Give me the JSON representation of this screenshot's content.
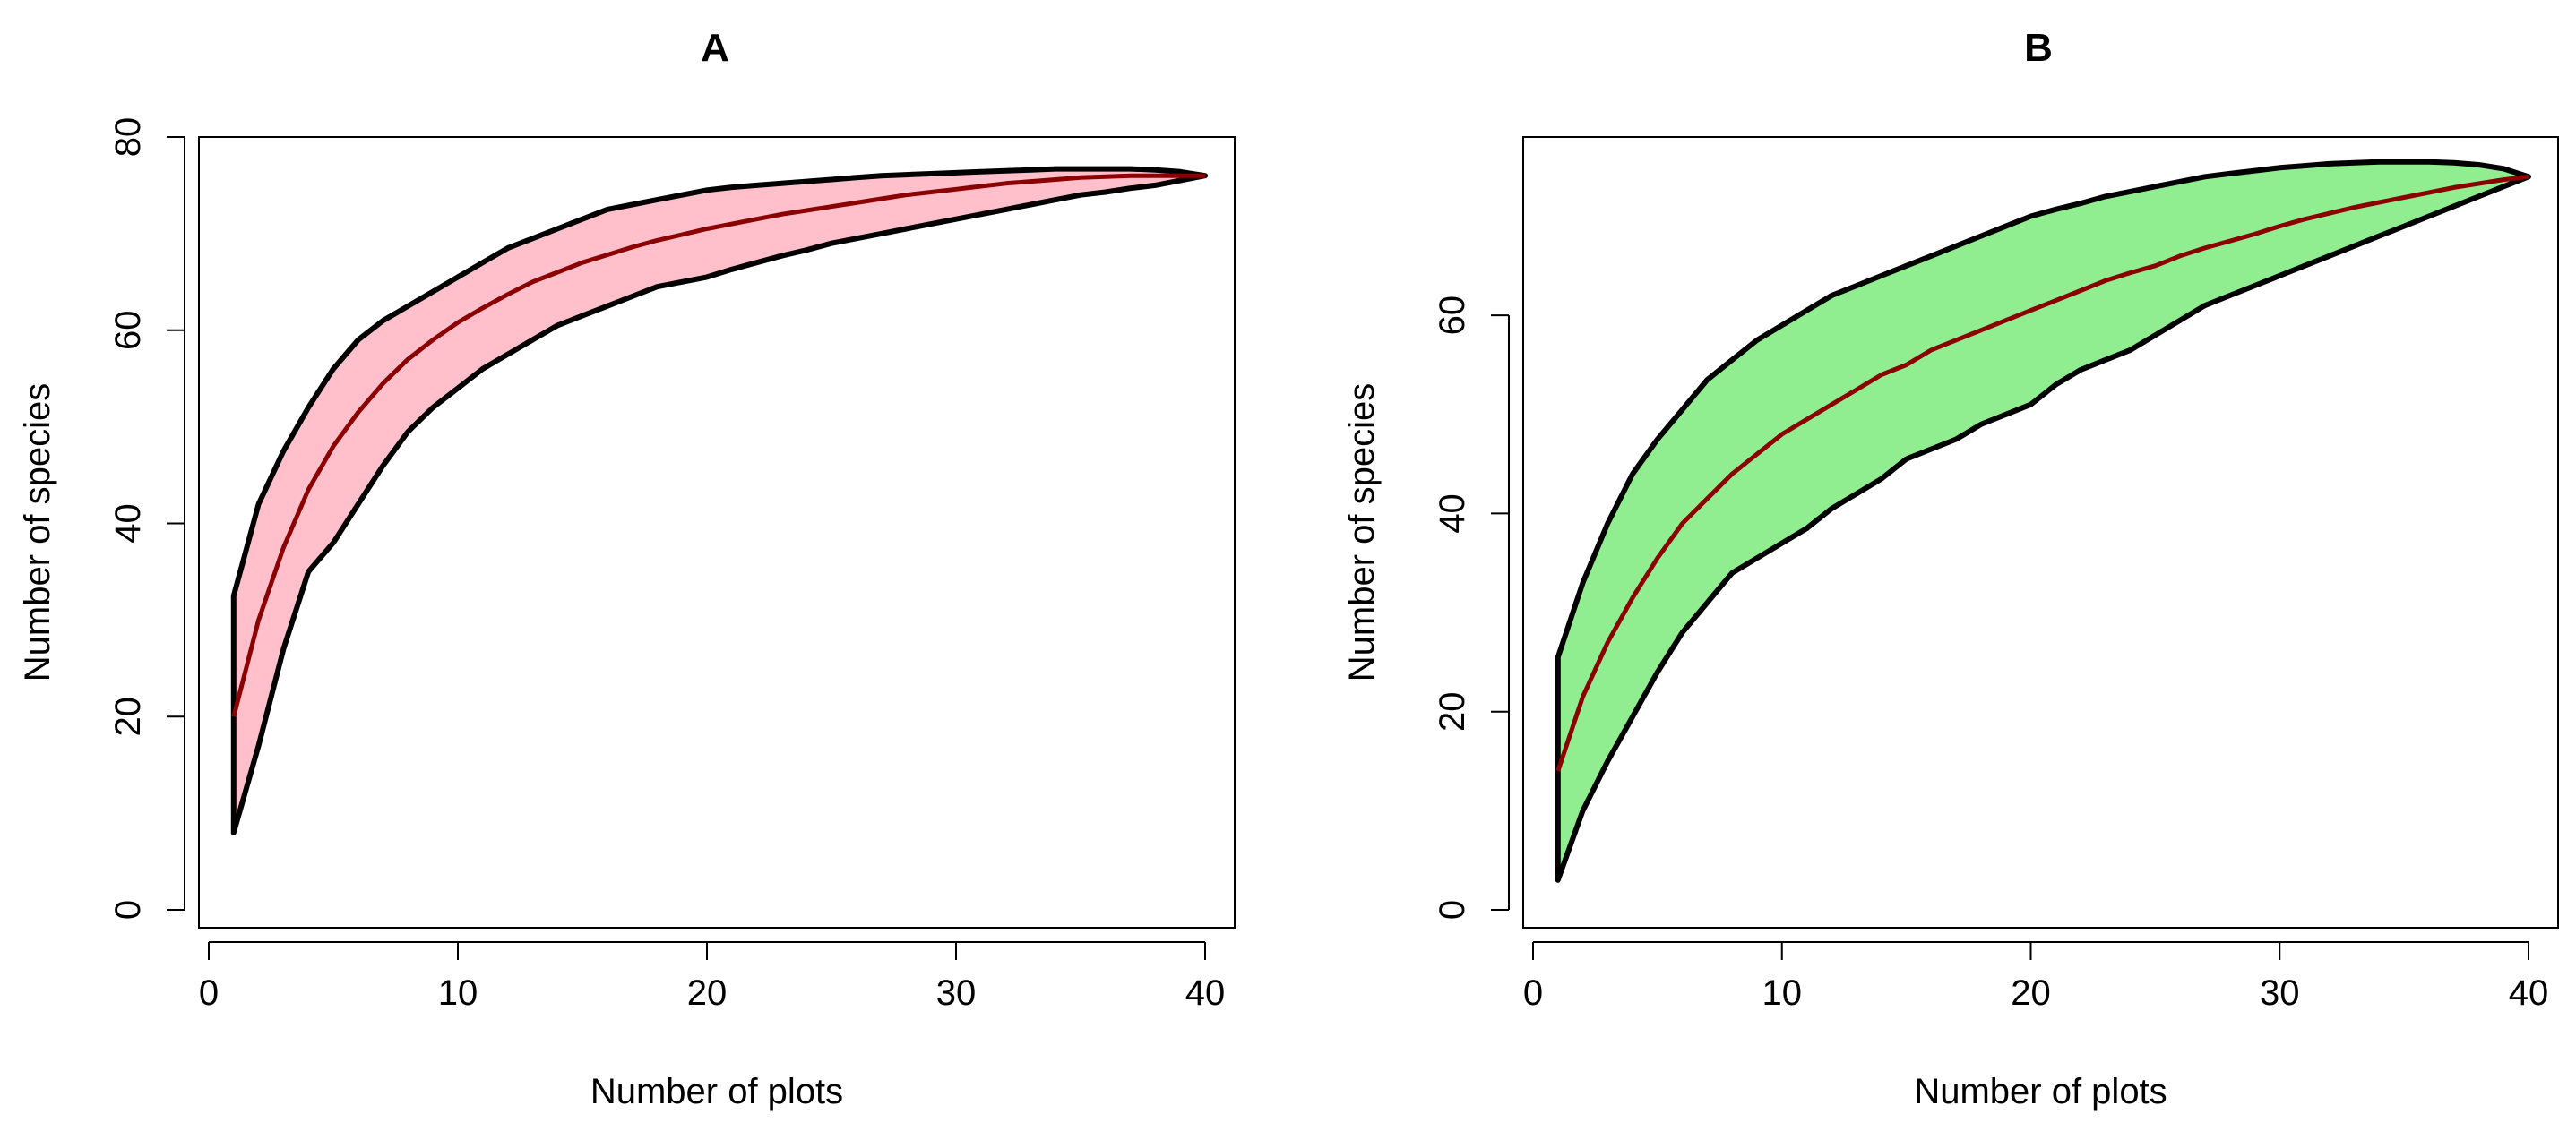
{
  "chart_data": [
    {
      "type": "area",
      "title": "A",
      "xlabel": "Number of plots",
      "ylabel": "Number of species",
      "xlim": [
        0,
        40
      ],
      "ylim": [
        0,
        80
      ],
      "xticks": [
        0,
        10,
        20,
        30,
        40
      ],
      "yticks": [
        0,
        20,
        40,
        60,
        80
      ],
      "grid": false,
      "colors": {
        "band": "#ffc0cb",
        "band_edge": "#000000",
        "mean_line": "#8b0000"
      },
      "x": [
        1,
        2,
        3,
        4,
        5,
        6,
        7,
        8,
        9,
        10,
        11,
        12,
        13,
        14,
        15,
        16,
        17,
        18,
        19,
        20,
        21,
        22,
        23,
        24,
        25,
        26,
        27,
        28,
        29,
        30,
        31,
        32,
        33,
        34,
        35,
        36,
        37,
        38,
        39,
        40
      ],
      "series": [
        {
          "role": "lower",
          "values": [
            8,
            17,
            27,
            35,
            38,
            42,
            46,
            49.5,
            52,
            54,
            56,
            57.5,
            59,
            60.5,
            61.5,
            62.5,
            63.5,
            64.5,
            65,
            65.5,
            66.3,
            67,
            67.7,
            68.3,
            69,
            69.5,
            70,
            70.5,
            71,
            71.5,
            72,
            72.5,
            73,
            73.5,
            74,
            74.3,
            74.7,
            75,
            75.5,
            76
          ]
        },
        {
          "role": "mean",
          "values": [
            20,
            30,
            37.5,
            43.5,
            48,
            51.5,
            54.5,
            57,
            59,
            60.8,
            62.3,
            63.7,
            65,
            66,
            67,
            67.8,
            68.6,
            69.3,
            69.9,
            70.5,
            71,
            71.5,
            72,
            72.4,
            72.8,
            73.2,
            73.6,
            74,
            74.3,
            74.6,
            74.9,
            75.2,
            75.4,
            75.6,
            75.8,
            75.9,
            76,
            76,
            76,
            76
          ]
        },
        {
          "role": "upper",
          "values": [
            32.5,
            42,
            47.5,
            52,
            56,
            59,
            61,
            62.5,
            64,
            65.5,
            67,
            68.5,
            69.5,
            70.5,
            71.5,
            72.5,
            73,
            73.5,
            74,
            74.5,
            74.8,
            75,
            75.2,
            75.4,
            75.6,
            75.8,
            76,
            76.1,
            76.2,
            76.3,
            76.4,
            76.5,
            76.6,
            76.7,
            76.7,
            76.7,
            76.7,
            76.6,
            76.4,
            76
          ]
        }
      ]
    },
    {
      "type": "area",
      "title": "B",
      "xlabel": "Number of plots",
      "ylabel": "Number of species",
      "xlim": [
        0,
        40
      ],
      "ylim": [
        0,
        78
      ],
      "xticks": [
        0,
        10,
        20,
        30,
        40
      ],
      "yticks": [
        0,
        20,
        40,
        60
      ],
      "grid": false,
      "colors": {
        "band": "#90ee90",
        "band_edge": "#000000",
        "mean_line": "#8b0000"
      },
      "x": [
        1,
        2,
        3,
        4,
        5,
        6,
        7,
        8,
        9,
        10,
        11,
        12,
        13,
        14,
        15,
        16,
        17,
        18,
        19,
        20,
        21,
        22,
        23,
        24,
        25,
        26,
        27,
        28,
        29,
        30,
        31,
        32,
        33,
        34,
        35,
        36,
        37,
        38,
        39,
        40
      ],
      "series": [
        {
          "role": "lower",
          "values": [
            3,
            10,
            15,
            19.5,
            24,
            28,
            31,
            34,
            35.5,
            37,
            38.5,
            40.5,
            42,
            43.5,
            45.5,
            46.5,
            47.5,
            49,
            50,
            51,
            53,
            54.5,
            55.5,
            56.5,
            58,
            59.5,
            61,
            62,
            63,
            64,
            65,
            66,
            67,
            68,
            69,
            70,
            71,
            72,
            73,
            74
          ]
        },
        {
          "role": "mean",
          "values": [
            14,
            21.5,
            27,
            31.5,
            35.5,
            39,
            41.5,
            44,
            46,
            48,
            49.5,
            51,
            52.5,
            54,
            55,
            56.5,
            57.5,
            58.5,
            59.5,
            60.5,
            61.5,
            62.5,
            63.5,
            64.3,
            65,
            66,
            66.8,
            67.5,
            68.2,
            69,
            69.7,
            70.3,
            70.9,
            71.4,
            71.9,
            72.4,
            72.9,
            73.3,
            73.7,
            74
          ]
        },
        {
          "role": "upper",
          "values": [
            25.5,
            33,
            39,
            44,
            47.5,
            50.5,
            53.5,
            55.5,
            57.5,
            59,
            60.5,
            62,
            63,
            64,
            65,
            66,
            67,
            68,
            69,
            70,
            70.7,
            71.3,
            72,
            72.5,
            73,
            73.5,
            74,
            74.3,
            74.6,
            74.9,
            75.1,
            75.3,
            75.4,
            75.5,
            75.5,
            75.5,
            75.4,
            75.2,
            74.8,
            74
          ]
        }
      ]
    }
  ]
}
